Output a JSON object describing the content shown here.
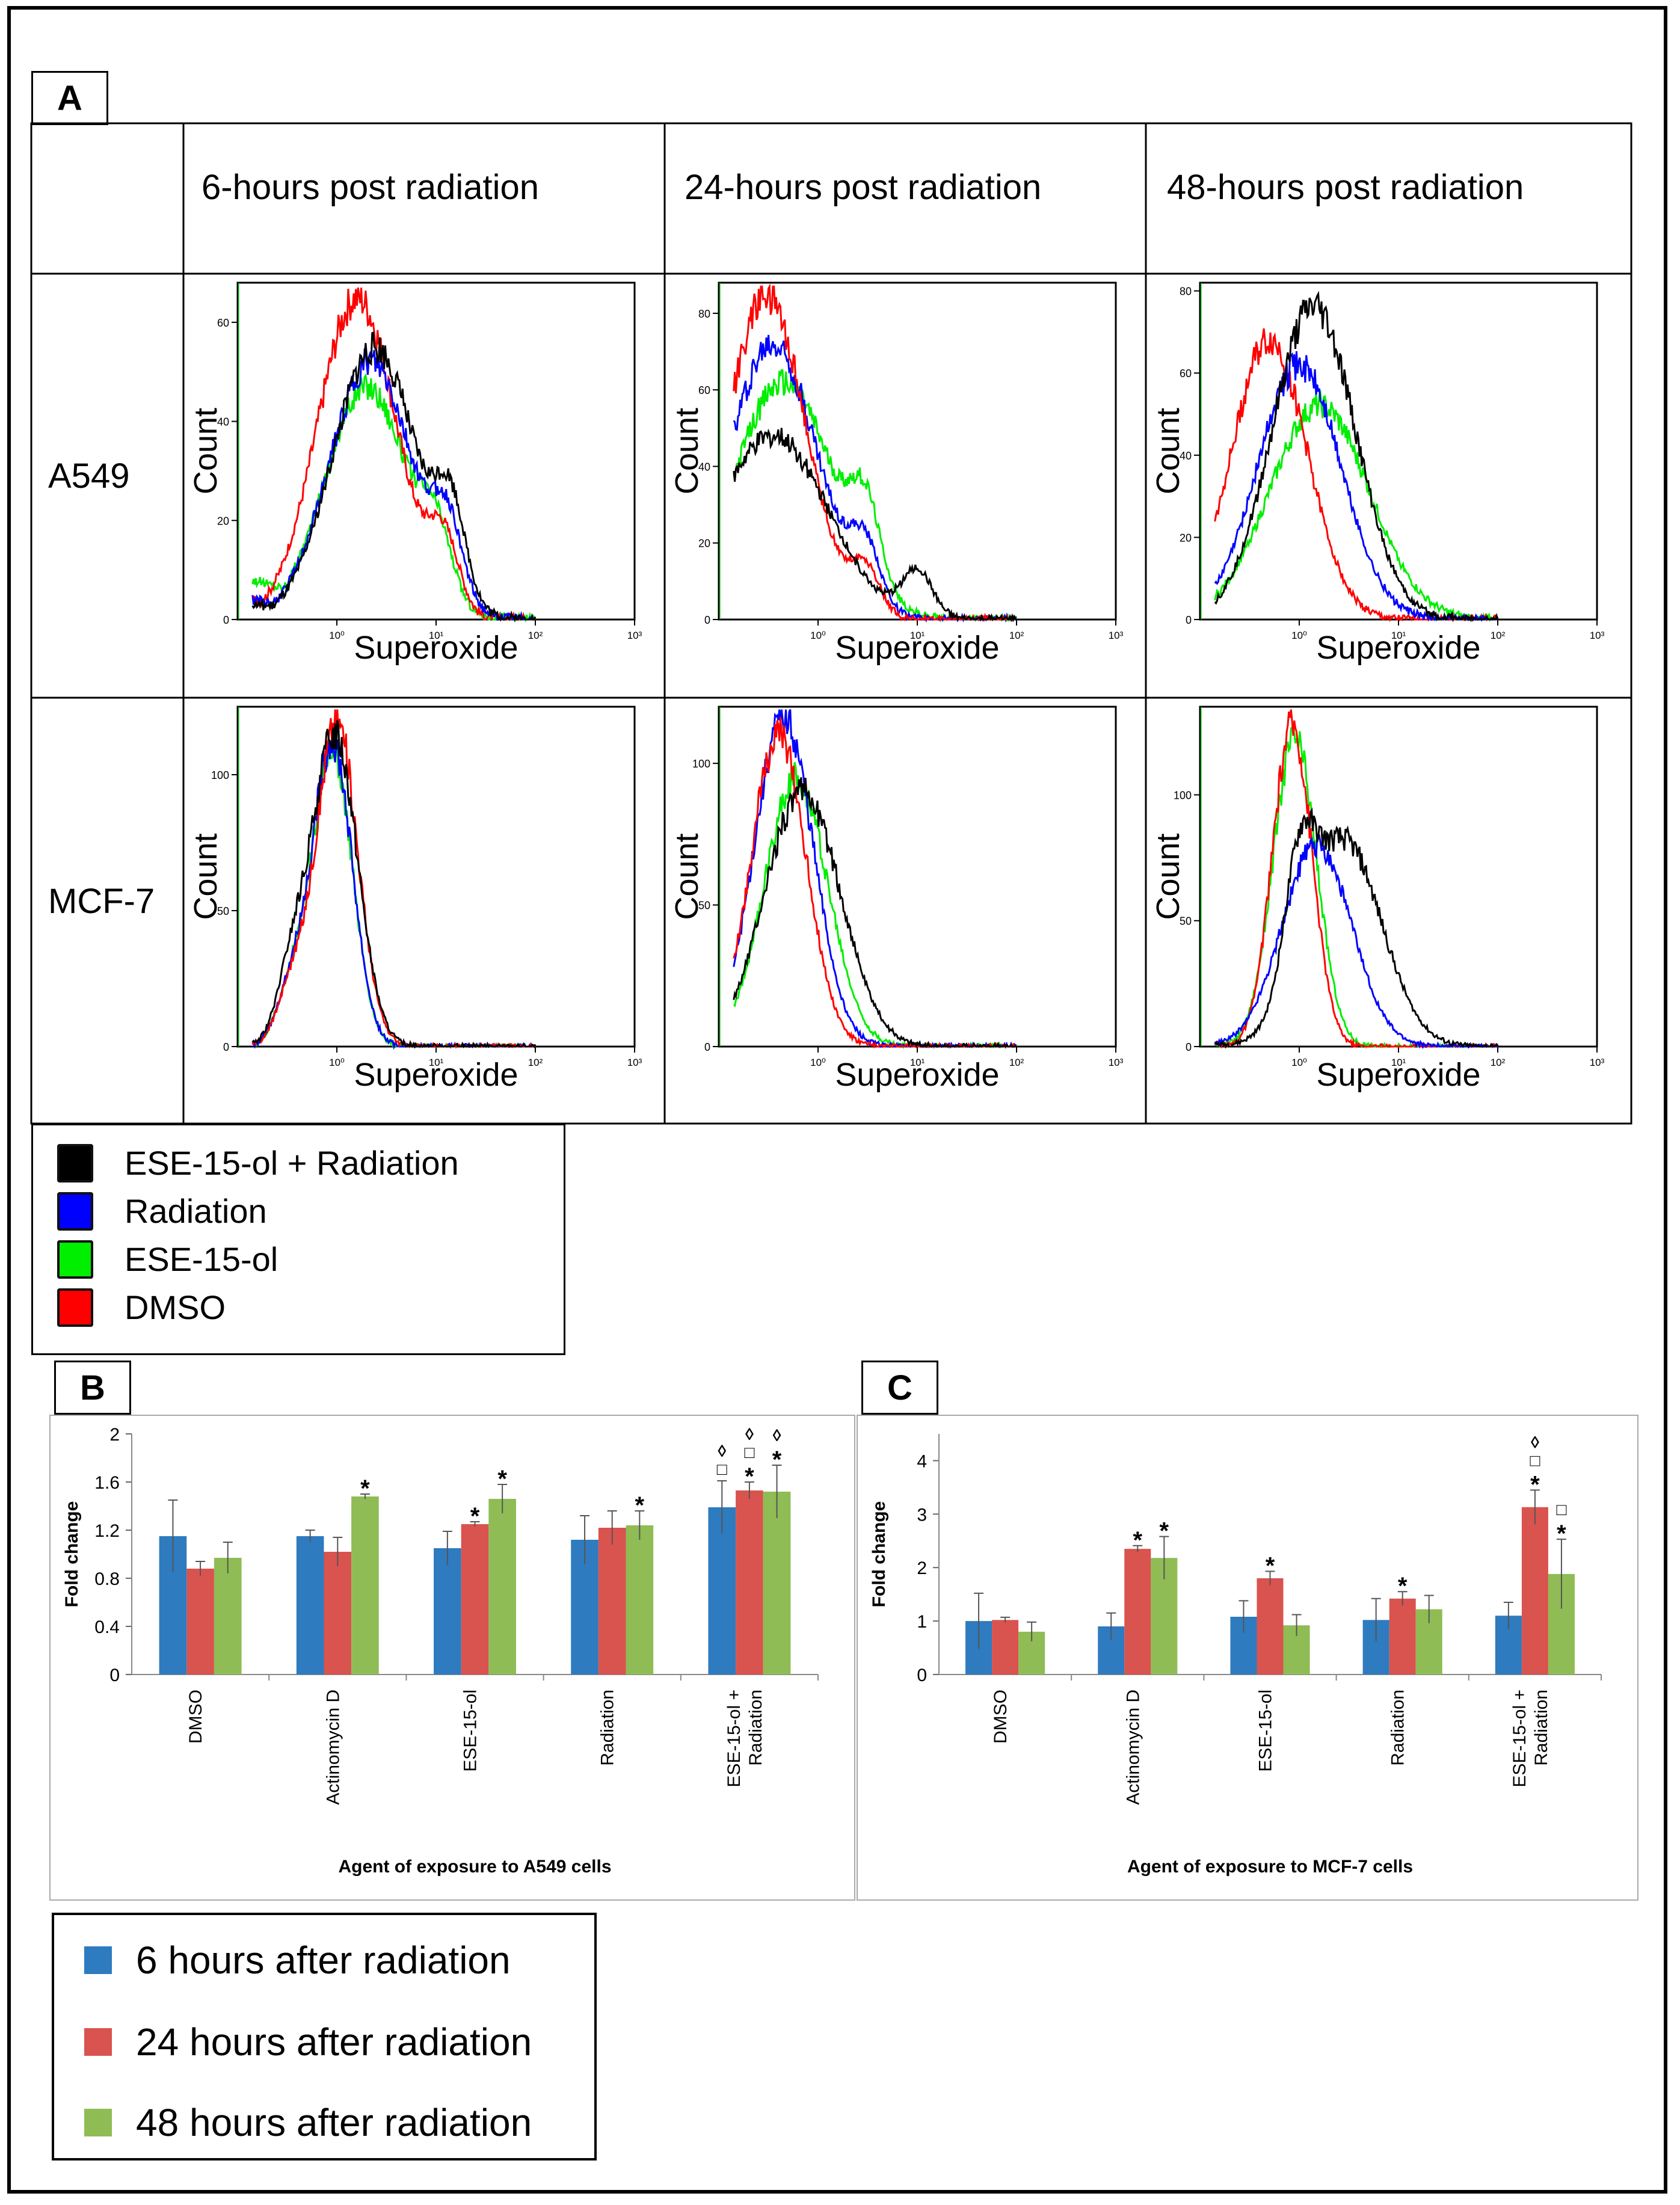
{
  "panel_labels": {
    "a": "A",
    "b": "B",
    "c": "C"
  },
  "grid": {
    "col_headers": [
      "6-hours post radiation",
      "24-hours post radiation",
      "48-hours post radiation"
    ],
    "row_headers": [
      "A549",
      "MCF-7"
    ]
  },
  "histogram_legend": {
    "entries": [
      {
        "label": "ESE-15-ol + Radiation",
        "color": "#000000"
      },
      {
        "label": "Radiation",
        "color": "#0000ff"
      },
      {
        "label": "ESE-15-ol",
        "color": "#00ee00"
      },
      {
        "label": "DMSO",
        "color": "#ff0000"
      }
    ]
  },
  "bar_legend": {
    "entries": [
      {
        "label": "6 hours after radiation",
        "color": "#2e7bbf"
      },
      {
        "label": "24 hours after radiation",
        "color": "#d9534f"
      },
      {
        "label": "48 hours after radiation",
        "color": "#8fbc55"
      }
    ]
  },
  "chart_data": [
    {
      "id": "A-A549-6h",
      "type": "line",
      "xlabel": "Superoxide",
      "ylabel": "Count",
      "xscale": "log",
      "xlim": [
        0.1,
        1000
      ],
      "ylim": [
        0,
        68
      ],
      "yticks": [
        0,
        20,
        40,
        60
      ],
      "xticks": [
        "10⁰",
        "10¹",
        "10²",
        "10³"
      ],
      "series": [
        {
          "color": "#00ee00",
          "peak_x": 2.0,
          "peak_y": 47,
          "spread": 0.42,
          "shoulder_x": 10,
          "shoulder_y": 12,
          "start_y": 8
        },
        {
          "color": "#ff0000",
          "peak_x": 1.6,
          "peak_y": 65,
          "spread": 0.4,
          "shoulder_x": 12,
          "shoulder_y": 14,
          "start_y": 4
        },
        {
          "color": "#0000ff",
          "peak_x": 2.2,
          "peak_y": 52,
          "spread": 0.42,
          "shoulder_x": 13,
          "shoulder_y": 15,
          "start_y": 4
        },
        {
          "color": "#000000",
          "peak_x": 2.4,
          "peak_y": 55,
          "spread": 0.42,
          "shoulder_x": 14,
          "shoulder_y": 18,
          "start_y": 3
        }
      ]
    },
    {
      "id": "A-A549-24h",
      "type": "line",
      "xlabel": "Superoxide",
      "ylabel": "Count",
      "xscale": "log",
      "xlim": [
        0.1,
        1000
      ],
      "ylim": [
        0,
        88
      ],
      "yticks": [
        0,
        20,
        40,
        60,
        80
      ],
      "xticks": [
        "10⁰",
        "10¹",
        "10²",
        "10³"
      ],
      "series": [
        {
          "color": "#00ee00",
          "peak_x": 0.45,
          "peak_y": 62,
          "spread": 0.5,
          "shoulder_x": 3,
          "shoulder_y": 20,
          "start_y": 3
        },
        {
          "color": "#0000ff",
          "peak_x": 0.35,
          "peak_y": 72,
          "spread": 0.45,
          "shoulder_x": 3,
          "shoulder_y": 15,
          "start_y": 3
        },
        {
          "color": "#ff0000",
          "peak_x": 0.3,
          "peak_y": 84,
          "spread": 0.4,
          "shoulder_x": 3,
          "shoulder_y": 12,
          "start_y": 3
        },
        {
          "color": "#000000",
          "peak_x": 0.35,
          "peak_y": 48,
          "spread": 0.55,
          "shoulder_x": 10,
          "shoulder_y": 12,
          "start_y": 6
        }
      ]
    },
    {
      "id": "A-A549-48h",
      "type": "line",
      "xlabel": "Superoxide",
      "ylabel": "Count",
      "xscale": "log",
      "xlim": [
        0.1,
        1000
      ],
      "ylim": [
        0,
        82
      ],
      "yticks": [
        0,
        20,
        40,
        60,
        80
      ],
      "xticks": [
        "10⁰",
        "10¹",
        "10²",
        "10³"
      ],
      "series": [
        {
          "color": "#00ee00",
          "peak_x": 1.6,
          "peak_y": 52,
          "spread": 0.5,
          "shoulder_x": 0,
          "shoulder_y": 0,
          "start_y": 2
        },
        {
          "color": "#ff0000",
          "peak_x": 0.5,
          "peak_y": 68,
          "spread": 0.38,
          "shoulder_x": 0,
          "shoulder_y": 0,
          "start_y": 2
        },
        {
          "color": "#0000ff",
          "peak_x": 1.0,
          "peak_y": 62,
          "spread": 0.42,
          "shoulder_x": 0,
          "shoulder_y": 0,
          "start_y": 2
        },
        {
          "color": "#000000",
          "peak_x": 1.4,
          "peak_y": 76,
          "spread": 0.42,
          "shoulder_x": 0,
          "shoulder_y": 0,
          "start_y": 1
        }
      ]
    },
    {
      "id": "A-MCF7-6h",
      "type": "line",
      "xlabel": "Superoxide",
      "ylabel": "Count",
      "xscale": "log",
      "xlim": [
        0.1,
        1000
      ],
      "ylim": [
        0,
        125
      ],
      "yticks": [
        0,
        50,
        100
      ],
      "xticks": [
        "10⁰",
        "10¹",
        "10²",
        "10³"
      ],
      "series": [
        {
          "color": "#00ee00",
          "peak_x": 0.9,
          "peak_y": 110,
          "spread": 0.2,
          "shoulder_x": 0.35,
          "shoulder_y": 20,
          "start_y": 1
        },
        {
          "color": "#0000ff",
          "peak_x": 0.9,
          "peak_y": 112,
          "spread": 0.2,
          "shoulder_x": 0.35,
          "shoulder_y": 20,
          "start_y": 1
        },
        {
          "color": "#ff0000",
          "peak_x": 1.0,
          "peak_y": 120,
          "spread": 0.21,
          "shoulder_x": 0.35,
          "shoulder_y": 20,
          "start_y": 1
        },
        {
          "color": "#000000",
          "peak_x": 0.95,
          "peak_y": 115,
          "spread": 0.23,
          "shoulder_x": 0.35,
          "shoulder_y": 24,
          "start_y": 1
        }
      ]
    },
    {
      "id": "A-MCF7-24h",
      "type": "line",
      "xlabel": "Superoxide",
      "ylabel": "Count",
      "xscale": "log",
      "xlim": [
        0.1,
        1000
      ],
      "ylim": [
        0,
        120
      ],
      "yticks": [
        0,
        50,
        100
      ],
      "xticks": [
        "10⁰",
        "10¹",
        "10²",
        "10³"
      ],
      "series": [
        {
          "color": "#00ee00",
          "peak_x": 0.6,
          "peak_y": 95,
          "spread": 0.32,
          "shoulder_x": 0,
          "shoulder_y": 0,
          "start_y": 1
        },
        {
          "color": "#0000ff",
          "peak_x": 0.45,
          "peak_y": 116,
          "spread": 0.3,
          "shoulder_x": 0,
          "shoulder_y": 0,
          "start_y": 1
        },
        {
          "color": "#ff0000",
          "peak_x": 0.4,
          "peak_y": 110,
          "spread": 0.28,
          "shoulder_x": 0,
          "shoulder_y": 0,
          "start_y": 1
        },
        {
          "color": "#000000",
          "peak_x": 0.7,
          "peak_y": 90,
          "spread": 0.38,
          "shoulder_x": 0,
          "shoulder_y": 0,
          "start_y": 1
        }
      ]
    },
    {
      "id": "A-MCF7-48h",
      "type": "line",
      "xlabel": "Superoxide",
      "ylabel": "Count",
      "xscale": "log",
      "xlim": [
        0.1,
        1000
      ],
      "ylim": [
        0,
        135
      ],
      "yticks": [
        0,
        50,
        100
      ],
      "xticks": [
        "10⁰",
        "10¹",
        "10²",
        "10³"
      ],
      "series": [
        {
          "color": "#00ee00",
          "peak_x": 0.9,
          "peak_y": 122,
          "spread": 0.22,
          "shoulder_x": 0,
          "shoulder_y": 0,
          "start_y": 1
        },
        {
          "color": "#ff0000",
          "peak_x": 0.85,
          "peak_y": 128,
          "spread": 0.2,
          "shoulder_x": 0,
          "shoulder_y": 0,
          "start_y": 1
        },
        {
          "color": "#0000ff",
          "peak_x": 1.5,
          "peak_y": 80,
          "spread": 0.35,
          "shoulder_x": 0,
          "shoulder_y": 0,
          "start_y": 1
        },
        {
          "color": "#000000",
          "peak_x": 2.8,
          "peak_y": 82,
          "spread": 0.38,
          "shoulder_x": 1.0,
          "shoulder_y": 45,
          "start_y": 1
        }
      ]
    },
    {
      "id": "B",
      "type": "bar",
      "title": "",
      "xlabel": "Agent of exposure to A549 cells",
      "ylabel": "Fold change",
      "ylim": [
        0,
        2
      ],
      "yticks": [
        "0",
        "0.4",
        "0.8",
        "1.2",
        "1.6",
        "2"
      ],
      "categories": [
        "DMSO",
        "Actinomycin D",
        "ESE-15-ol",
        "Radiation",
        "ESE-15-ol + Radiation"
      ],
      "series": [
        {
          "name": "6 hours after radiation",
          "color": "#2e7bbf",
          "values": [
            1.15,
            1.15,
            1.05,
            1.12,
            1.39
          ],
          "errors": [
            0.3,
            0.05,
            0.14,
            0.2,
            0.22
          ],
          "marks": [
            "",
            "",
            "",
            "",
            "◊\n□"
          ]
        },
        {
          "name": "24 hours after radiation",
          "color": "#d9534f",
          "values": [
            0.88,
            1.02,
            1.25,
            1.22,
            1.53
          ],
          "errors": [
            0.06,
            0.12,
            0.02,
            0.14,
            0.07
          ],
          "marks": [
            "",
            "",
            "*",
            "",
            "◊\n□\n*"
          ]
        },
        {
          "name": "48 hours after radiation",
          "color": "#8fbc55",
          "values": [
            0.97,
            1.48,
            1.46,
            1.24,
            1.52
          ],
          "errors": [
            0.13,
            0.02,
            0.12,
            0.12,
            0.22
          ],
          "marks": [
            "",
            "*",
            "*",
            "*",
            "◊\n*"
          ]
        }
      ]
    },
    {
      "id": "C",
      "type": "bar",
      "title": "",
      "xlabel": "Agent of exposure to MCF-7 cells",
      "ylabel": "Fold change",
      "ylim": [
        0,
        4.5
      ],
      "yticks": [
        "0",
        "1",
        "2",
        "3",
        "4"
      ],
      "categories": [
        "DMSO",
        "Actinomycin D",
        "ESE-15-ol",
        "Radiation",
        "ESE-15-ol + Radiation"
      ],
      "series": [
        {
          "name": "6 hours after radiation",
          "color": "#2e7bbf",
          "values": [
            1.0,
            0.9,
            1.08,
            1.02,
            1.1
          ],
          "errors": [
            0.52,
            0.25,
            0.3,
            0.4,
            0.25
          ],
          "marks": [
            "",
            "",
            "",
            "",
            ""
          ]
        },
        {
          "name": "24 hours after radiation",
          "color": "#d9534f",
          "values": [
            1.02,
            2.35,
            1.8,
            1.42,
            3.13
          ],
          "errors": [
            0.05,
            0.06,
            0.13,
            0.13,
            0.32
          ],
          "marks": [
            "",
            "*",
            "*",
            "*",
            "◊\n□\n*"
          ]
        },
        {
          "name": "48 hours after radiation",
          "color": "#8fbc55",
          "values": [
            0.8,
            2.18,
            0.92,
            1.22,
            1.88
          ],
          "errors": [
            0.18,
            0.4,
            0.2,
            0.26,
            0.65
          ],
          "marks": [
            "",
            "*",
            "",
            "",
            "□\n*"
          ]
        }
      ]
    }
  ]
}
